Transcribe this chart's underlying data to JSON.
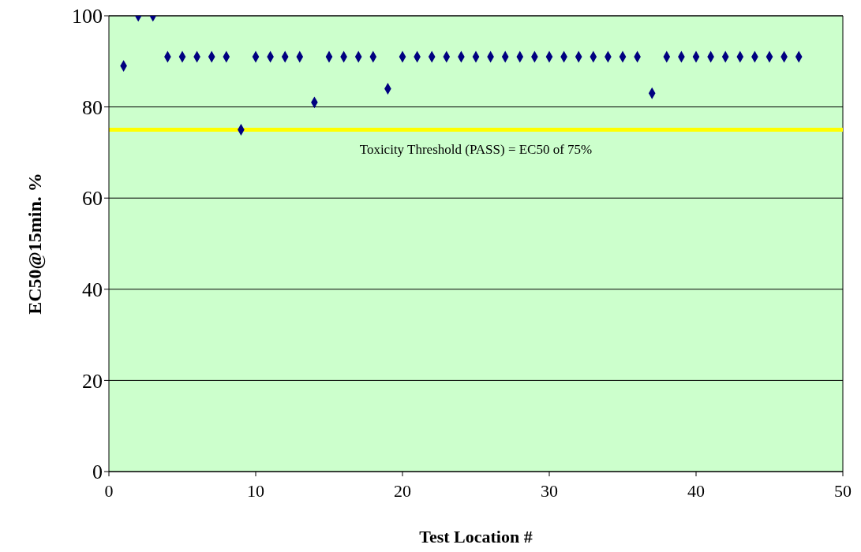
{
  "chart_data": {
    "type": "scatter",
    "xlabel": "Test Location #",
    "ylabel": "EC50@15min. %",
    "x": [
      1,
      2,
      3,
      4,
      5,
      6,
      7,
      8,
      9,
      10,
      11,
      12,
      13,
      14,
      15,
      16,
      17,
      18,
      19,
      20,
      21,
      22,
      23,
      24,
      25,
      26,
      27,
      28,
      29,
      30,
      31,
      32,
      33,
      34,
      35,
      36,
      37,
      38,
      39,
      40,
      41,
      42,
      43,
      44,
      45,
      46,
      47
    ],
    "series": [
      {
        "color": "#000080",
        "values": [
          89,
          100,
          100,
          91,
          91,
          91,
          91,
          91,
          75,
          91,
          91,
          91,
          91,
          81,
          91,
          91,
          91,
          91,
          84,
          91,
          91,
          91,
          91,
          91,
          91,
          91,
          91,
          91,
          91,
          91,
          91,
          91,
          91,
          91,
          91,
          91,
          83,
          91,
          91,
          91,
          91,
          91,
          91,
          91,
          91,
          91,
          91
        ]
      }
    ],
    "xlim": [
      0,
      50
    ],
    "xticks": [
      0,
      10,
      20,
      30,
      40,
      50
    ],
    "ylim": [
      0,
      100
    ],
    "yticks": [
      0,
      20,
      40,
      60,
      80,
      100
    ],
    "grid": "y",
    "marker": "diamond",
    "legend": false,
    "ref_lines": [
      {
        "axis": "y",
        "value": 75,
        "color": "#ffff00",
        "label": "Toxicity Threshold (PASS) = EC50 of 75%"
      }
    ]
  }
}
